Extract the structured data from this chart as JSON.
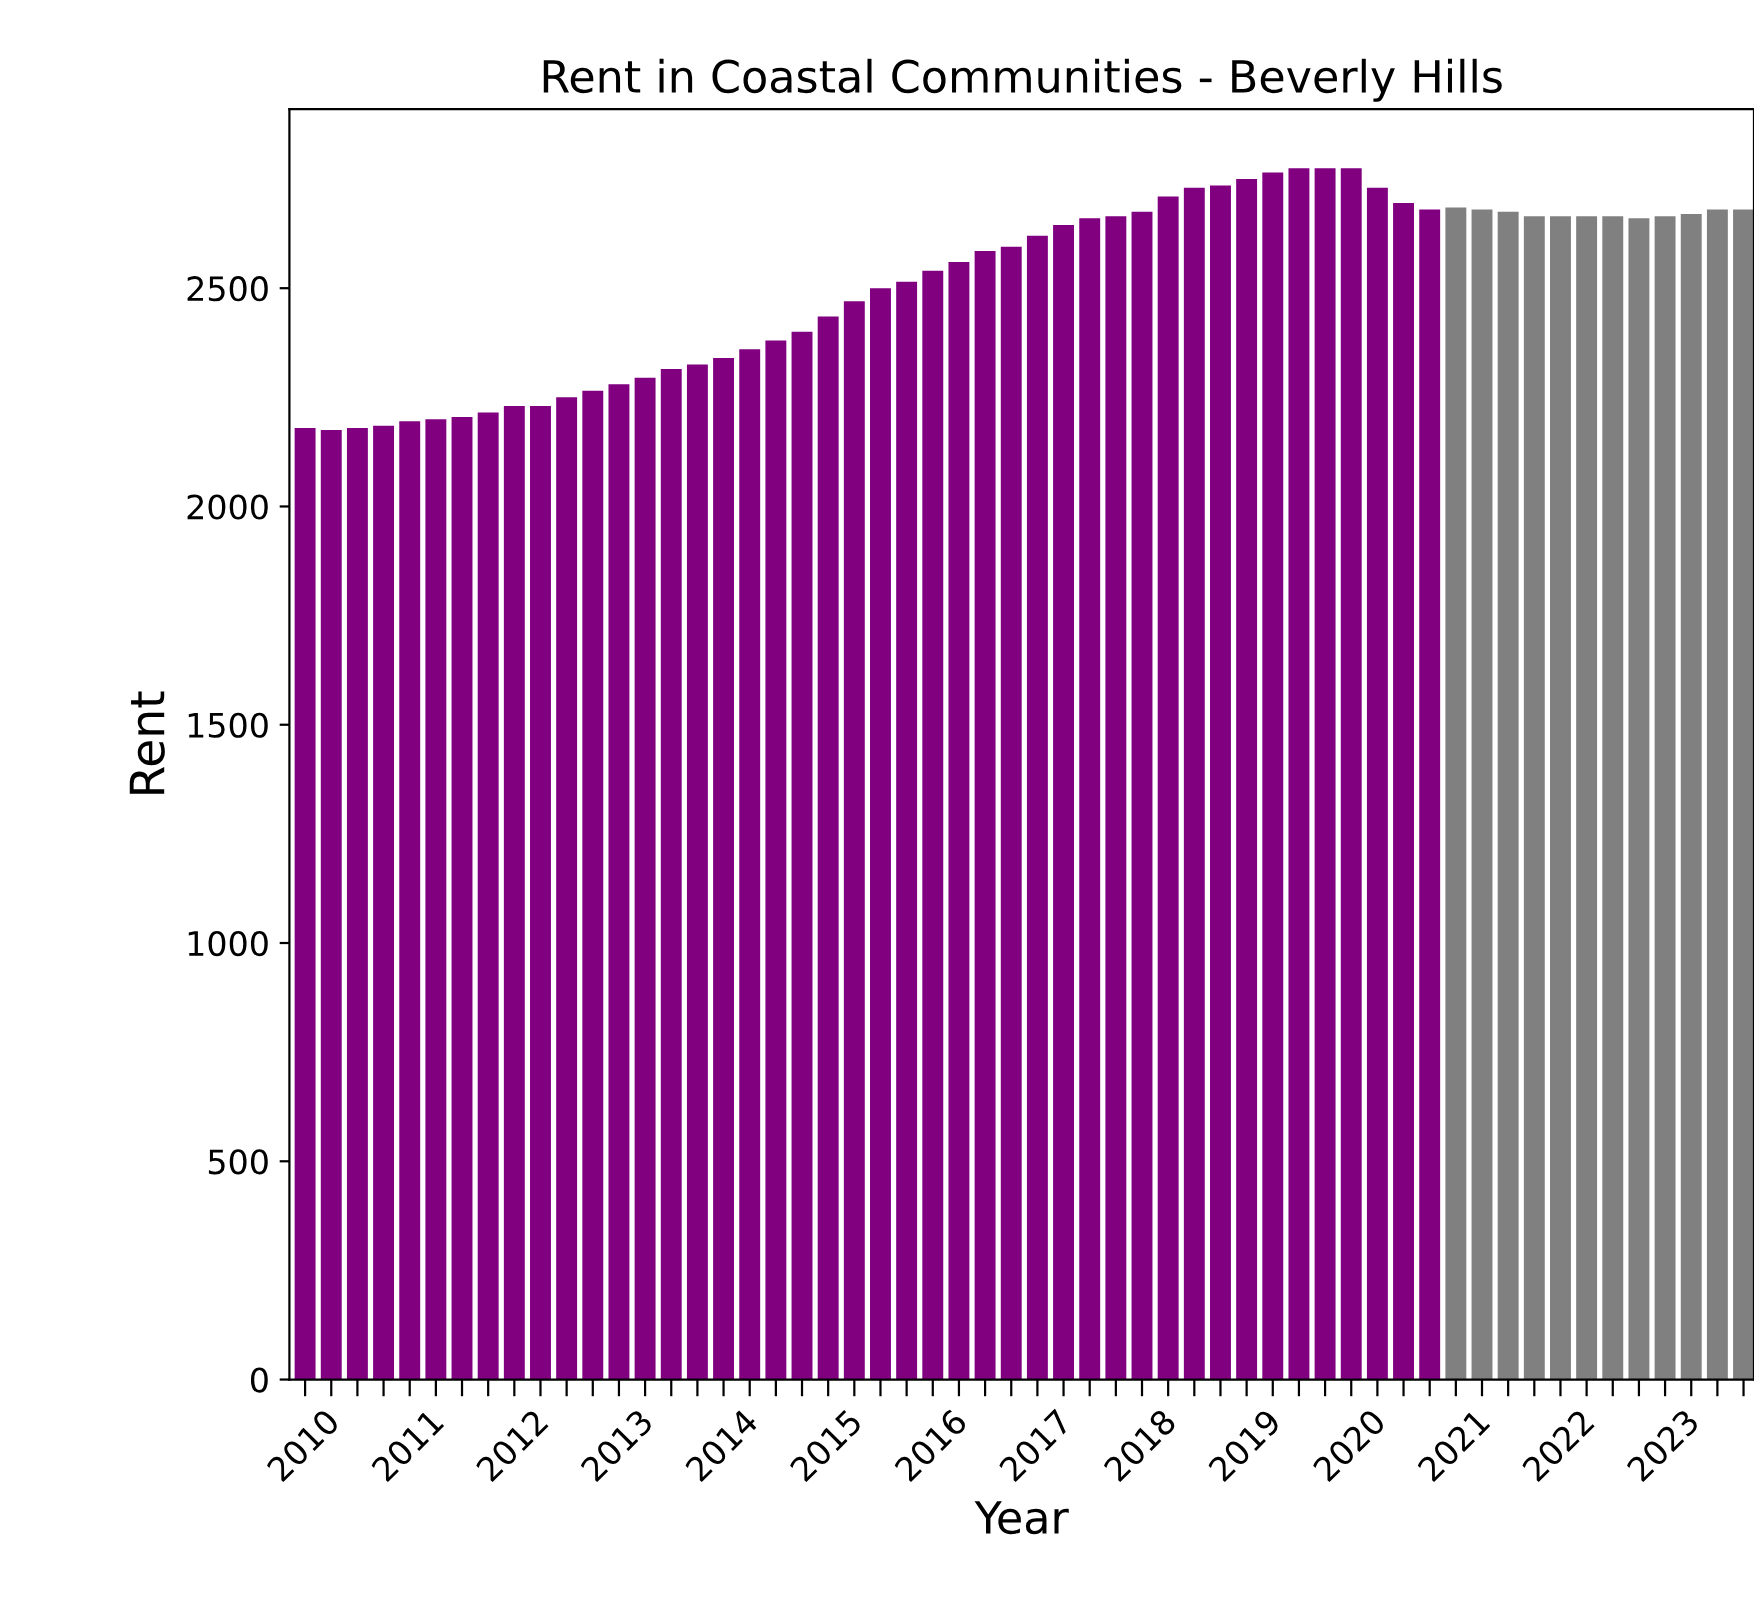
{
  "chart_data": {
    "type": "bar",
    "title": "Rent in Coastal Communities - Beverly Hills",
    "xlabel": "Year",
    "ylabel": "Rent",
    "categories": [
      "2010",
      null,
      null,
      null,
      "2011",
      null,
      null,
      null,
      "2012",
      null,
      null,
      null,
      "2013",
      null,
      null,
      null,
      "2014",
      null,
      null,
      null,
      "2015",
      null,
      null,
      null,
      "2016",
      null,
      null,
      null,
      "2017",
      null,
      null,
      null,
      "2018",
      null,
      null,
      null,
      "2019",
      null,
      null,
      null,
      "2020",
      null,
      null,
      null,
      "2021",
      null,
      null,
      null,
      "2022",
      null,
      null,
      null,
      "2023",
      null,
      null,
      null
    ],
    "values": [
      2180,
      2175,
      2180,
      2185,
      2195,
      2200,
      2205,
      2215,
      2230,
      2230,
      2250,
      2265,
      2280,
      2295,
      2315,
      2325,
      2340,
      2360,
      2380,
      2400,
      2435,
      2470,
      2500,
      2515,
      2540,
      2560,
      2585,
      2595,
      2620,
      2645,
      2660,
      2665,
      2675,
      2710,
      2730,
      2735,
      2750,
      2765,
      2775,
      2775,
      2775,
      2730,
      2695,
      2680,
      2685,
      2680,
      2675,
      2665,
      2665,
      2665,
      2665,
      2660,
      2665,
      2670,
      2680,
      2680
    ],
    "colors": [
      "#800080",
      "#800080",
      "#800080",
      "#800080",
      "#800080",
      "#800080",
      "#800080",
      "#800080",
      "#800080",
      "#800080",
      "#800080",
      "#800080",
      "#800080",
      "#800080",
      "#800080",
      "#800080",
      "#800080",
      "#800080",
      "#800080",
      "#800080",
      "#800080",
      "#800080",
      "#800080",
      "#800080",
      "#800080",
      "#800080",
      "#800080",
      "#800080",
      "#800080",
      "#800080",
      "#800080",
      "#800080",
      "#800080",
      "#800080",
      "#800080",
      "#800080",
      "#800080",
      "#800080",
      "#800080",
      "#800080",
      "#800080",
      "#800080",
      "#800080",
      "#800080",
      "#808080",
      "#808080",
      "#808080",
      "#808080",
      "#808080",
      "#808080",
      "#808080",
      "#808080",
      "#808080",
      "#808080",
      "#808080",
      "#808080"
    ],
    "ylim": [
      0,
      2910
    ],
    "yticks": [
      0,
      500,
      1000,
      1500,
      2000,
      2500
    ],
    "grid": false,
    "legend": false
  }
}
